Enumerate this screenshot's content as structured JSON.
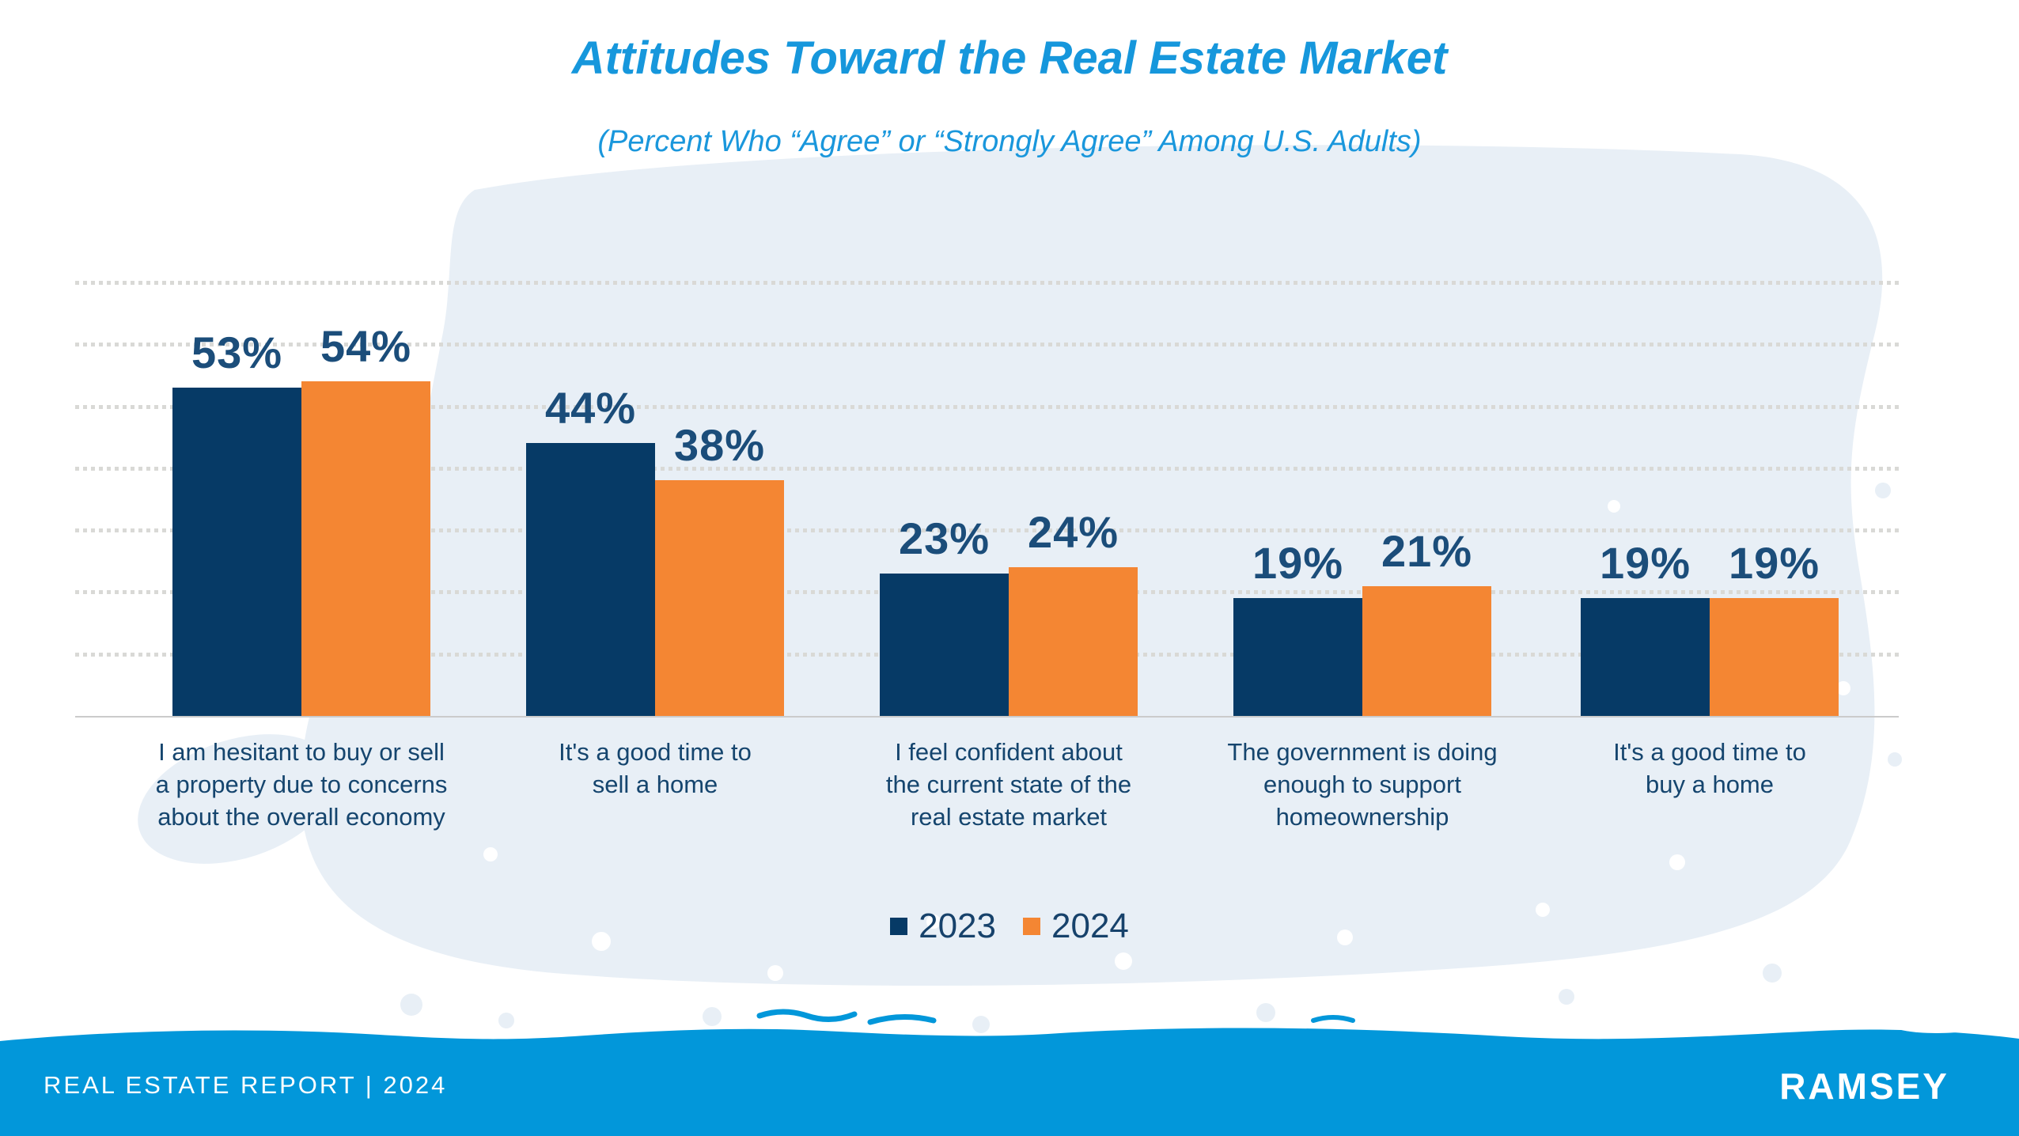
{
  "title": "Attitudes Toward the Real Estate Market",
  "subtitle": "(Percent Who “Agree” or “Strongly Agree” Among U.S. Adults)",
  "chart_data": {
    "type": "bar",
    "categories": [
      "I am hesitant to buy or sell a property due to concerns about the overall economy",
      "It's a good time to sell a home",
      "I feel confident about the current state of the real estate market",
      "The government is doing enough to support homeownership",
      "It's a good time to buy a home"
    ],
    "categories_lines": [
      [
        "I am hesitant to buy or sell",
        "a property due to concerns",
        "about the overall economy"
      ],
      [
        "It's a good time to",
        "sell a home"
      ],
      [
        "I feel confident about",
        "the current state of the",
        "real estate market"
      ],
      [
        "The government is doing",
        "enough to support",
        "homeownership"
      ],
      [
        "It's a good time to",
        "buy a home"
      ]
    ],
    "series": [
      {
        "name": "2023",
        "values": [
          53,
          44,
          23,
          19,
          19
        ],
        "color": "#063a66"
      },
      {
        "name": "2024",
        "values": [
          54,
          38,
          24,
          21,
          19
        ],
        "color": "#f48633"
      }
    ],
    "value_suffix": "%",
    "ylim": [
      0,
      70
    ],
    "gridlines_percent": [
      10,
      20,
      30,
      40,
      50,
      60,
      70
    ],
    "grid_style": "dotted-horizontal",
    "legend_position": "bottom",
    "value_labels": "above-bars"
  },
  "legend": {
    "items": [
      {
        "label": "2023",
        "color": "#063a66"
      },
      {
        "label": "2024",
        "color": "#f48633"
      }
    ]
  },
  "footer": {
    "report_label": "REAL ESTATE REPORT | 2024",
    "brand": "RAMSEY"
  },
  "colors": {
    "title_blue": "#1697dc",
    "bar_navy": "#063a66",
    "bar_orange": "#f48633",
    "value_label_navy": "#1b4d7a",
    "category_navy": "#15456e",
    "gridline_gray": "#d9d9d6",
    "splash_light_blue": "#e8eff6",
    "footer_band_blue": "#0297da",
    "footer_text_white": "#ffffff"
  }
}
